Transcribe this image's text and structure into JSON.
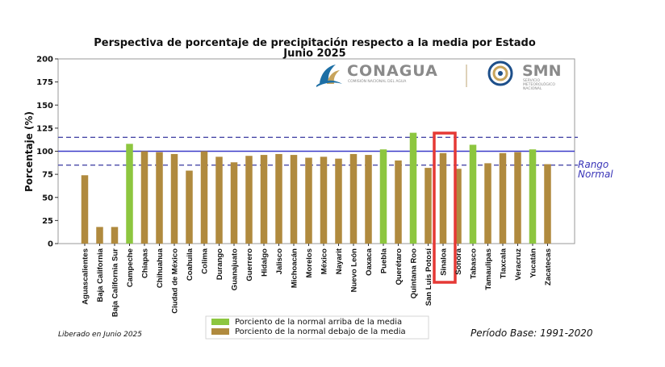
{
  "chart_data": {
    "type": "bar",
    "title": "Perspectiva de porcentaje de precipitación respecto a la media por Estado",
    "subtitle": "Junio 2025",
    "ylabel": "Porcentaje (%)",
    "xlabel": "",
    "ylim": [
      0,
      200
    ],
    "yticks": [
      0,
      25,
      50,
      75,
      100,
      125,
      150,
      175,
      200
    ],
    "categories": [
      "Aguascalientes",
      "Baja California",
      "Baja California Sur",
      "Campeche",
      "Chiapas",
      "Chihuahua",
      "Ciudad de México",
      "Coahuila",
      "Colima",
      "Durango",
      "Guanajuato",
      "Guerrero",
      "Hidalgo",
      "Jalisco",
      "Michoacán",
      "Morelos",
      "México",
      "Nayarit",
      "Nuevo León",
      "Oaxaca",
      "Puebla",
      "Querétaro",
      "Quintana Roo",
      "San Luis Potosí",
      "Sinaloa",
      "Sonora",
      "Tabasco",
      "Tamaulipas",
      "Tlaxcala",
      "Veracruz",
      "Yucatán",
      "Zacatecas"
    ],
    "values": [
      74,
      18,
      18,
      108,
      100,
      99,
      97,
      79,
      100,
      94,
      88,
      95,
      96,
      97,
      96,
      93,
      94,
      92,
      97,
      96,
      102,
      90,
      120,
      82,
      98,
      81,
      107,
      87,
      98,
      99,
      102,
      86
    ],
    "above_mean": [
      false,
      false,
      false,
      true,
      false,
      false,
      false,
      false,
      false,
      false,
      false,
      false,
      false,
      false,
      false,
      false,
      false,
      false,
      false,
      false,
      true,
      false,
      true,
      false,
      false,
      false,
      true,
      false,
      false,
      false,
      true,
      false
    ],
    "highlighted_category": "Sinaloa",
    "reference_lines": {
      "mean": 100,
      "range_low": 85,
      "range_high": 115
    },
    "range_label": "Rango Normal",
    "grid": false,
    "legend": {
      "placement": "bottom-center",
      "entries": [
        {
          "label": "Porciento de la normal arriba de la media",
          "color": "#8dc63f"
        },
        {
          "label": "Porciento de la normal debajo de la media",
          "color": "#b08a3e"
        }
      ]
    },
    "colors": {
      "above": "#8dc63f",
      "below": "#b08a3e",
      "mean_line": "#3b3bc8",
      "range_line": "#4a4aa8",
      "highlight": "#e53935"
    }
  },
  "logos": {
    "conagua": "CONAGUA",
    "conagua_sub": "COMISIÓN NACIONAL DEL AGUA",
    "smn": "SMN",
    "smn_sub_1": "SERVICIO",
    "smn_sub_2": "METEOROLÓGICO",
    "smn_sub_3": "NACIONAL"
  },
  "footer": {
    "release_note": "Liberado en Junio 2025",
    "base_period": "Período Base: 1991-2020"
  }
}
